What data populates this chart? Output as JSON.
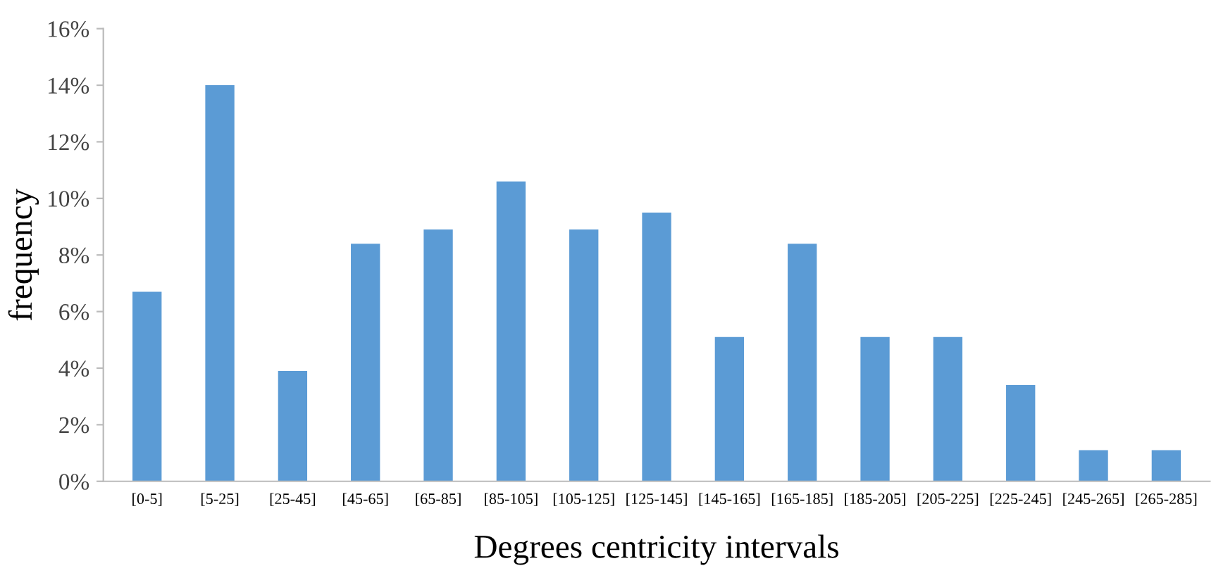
{
  "chart_data": {
    "type": "bar",
    "xlabel": "Degrees centricity intervals",
    "ylabel": "frequency",
    "categories": [
      "[0-5]",
      "[5-25]",
      "[25-45]",
      "[45-65]",
      "[65-85]",
      "[85-105]",
      "[105-125]",
      "[125-145]",
      "[145-165]",
      "[165-185]",
      "[185-205]",
      "[205-225]",
      "[225-245]",
      "[245-265]",
      "[265-285]"
    ],
    "values": [
      6.7,
      14.0,
      3.9,
      8.4,
      8.9,
      10.6,
      8.9,
      9.5,
      5.1,
      8.4,
      5.1,
      5.1,
      3.4,
      1.1,
      1.1
    ],
    "color": "#5b9bd5",
    "ylim": [
      0,
      16
    ],
    "yticks": [
      {
        "value": 0,
        "label": "0%"
      },
      {
        "value": 2,
        "label": "2%"
      },
      {
        "value": 4,
        "label": "4%"
      },
      {
        "value": 6,
        "label": "6%"
      },
      {
        "value": 8,
        "label": "8%"
      },
      {
        "value": 10,
        "label": "10%"
      },
      {
        "value": 12,
        "label": "12%"
      },
      {
        "value": 14,
        "label": "14%"
      },
      {
        "value": 16,
        "label": "16%"
      }
    ],
    "grid": false
  }
}
